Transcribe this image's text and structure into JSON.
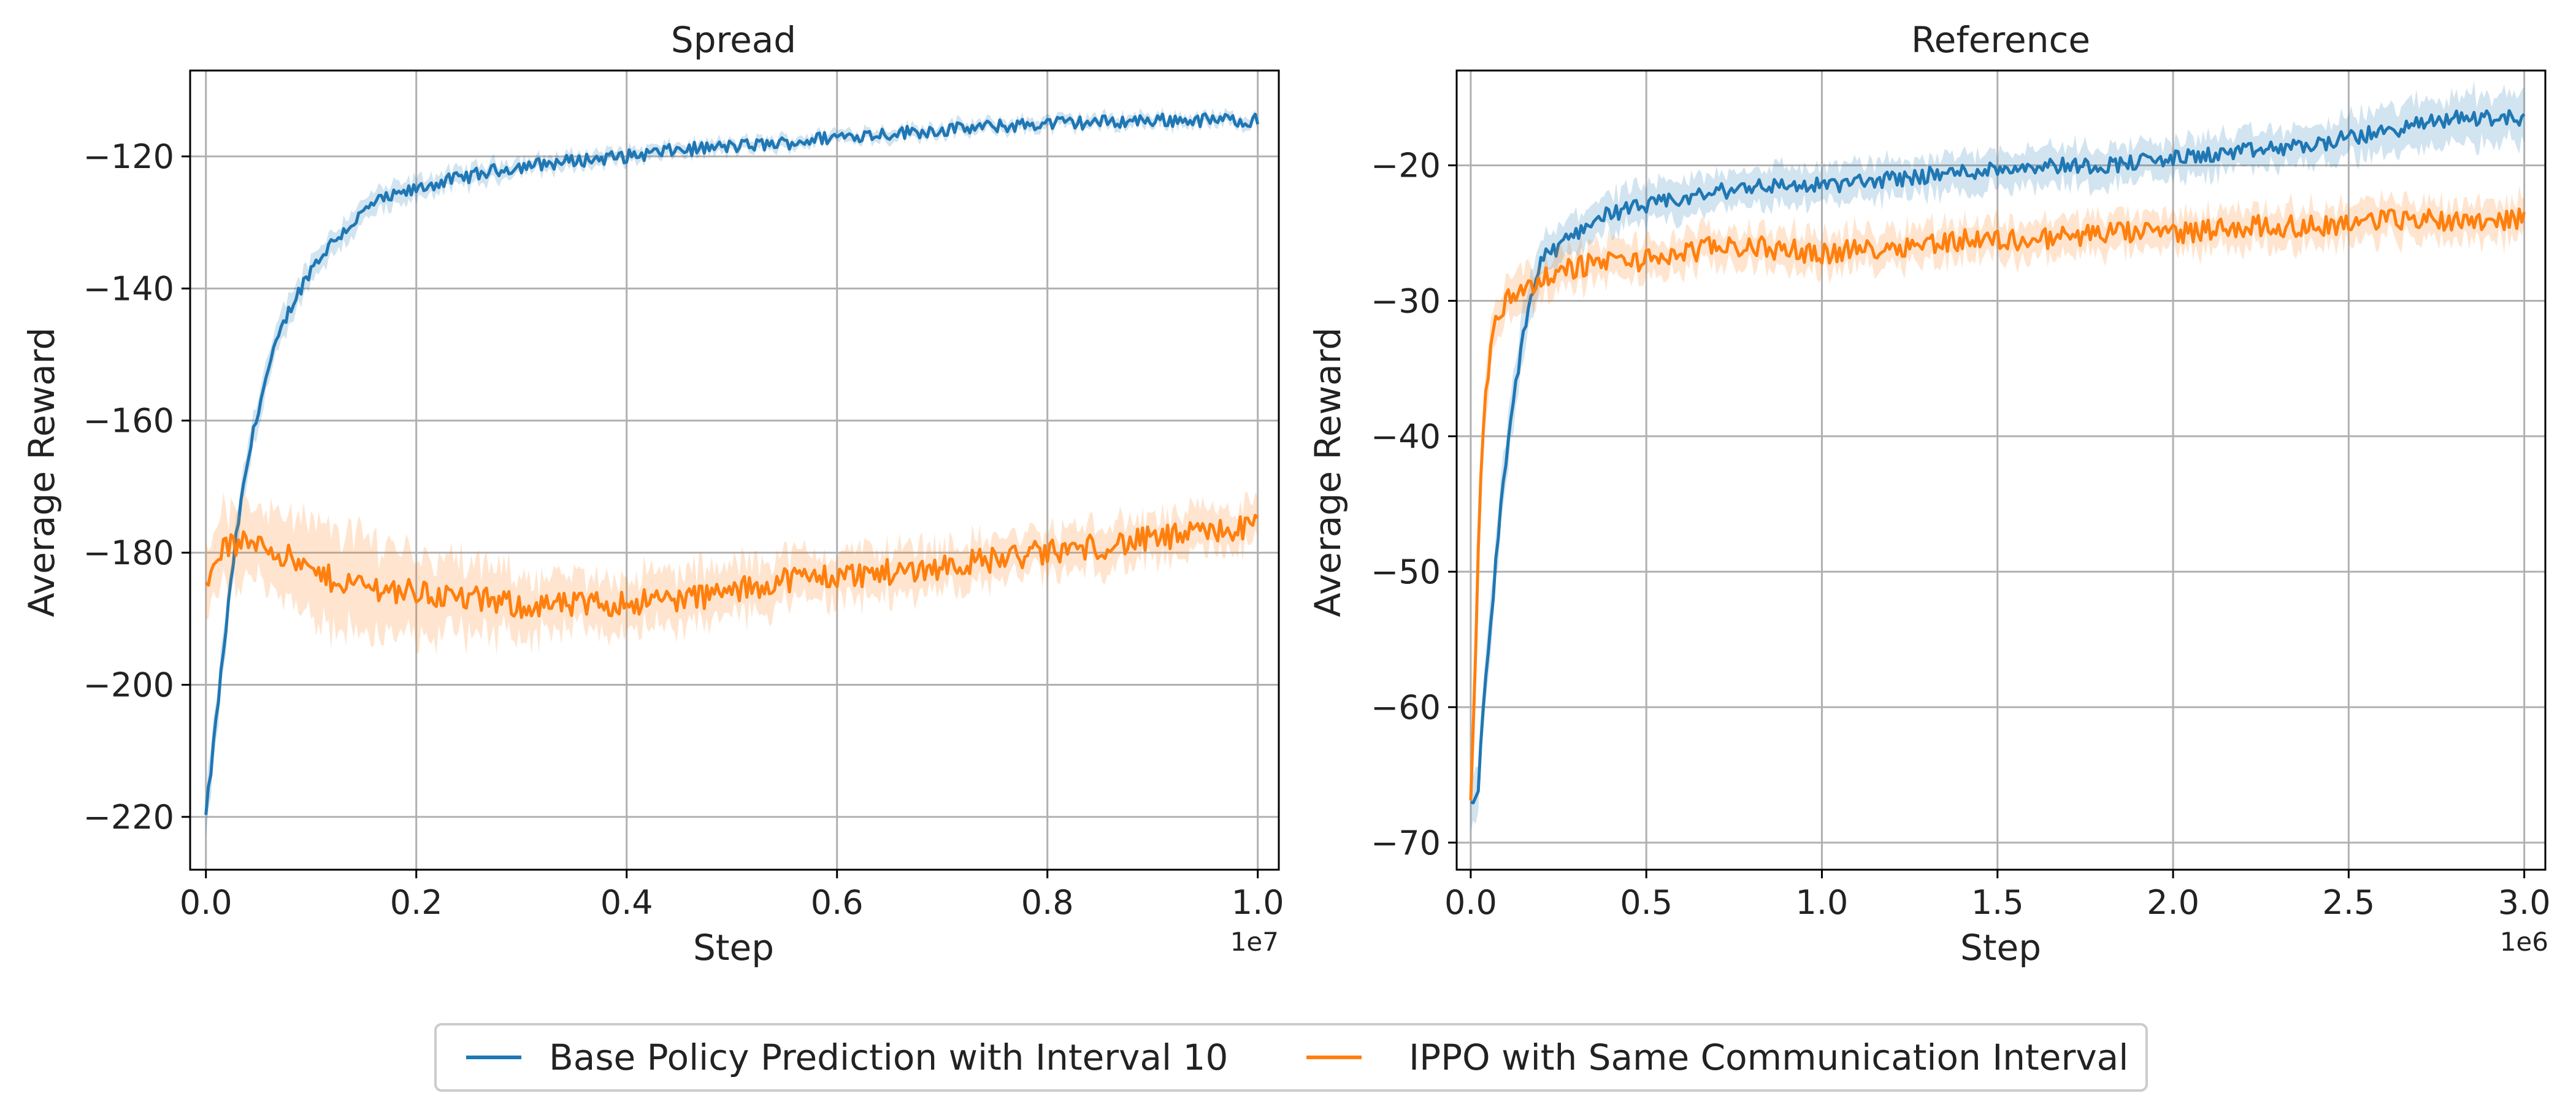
{
  "legend": {
    "entries": [
      {
        "label": "Base Policy Prediction with Interval 10",
        "color": "#1f77b4"
      },
      {
        "label": "IPPO with Same Communication Interval",
        "color": "#ff7f0e"
      }
    ]
  },
  "chart_data": [
    {
      "type": "line",
      "title": "Spread",
      "xlabel": "Step",
      "ylabel": "Average Reward",
      "x_multiplier": "1e7",
      "xlim": [
        -0.015,
        1.02
      ],
      "ylim": [
        -228,
        -107
      ],
      "xticks": [
        0.0,
        0.2,
        0.4,
        0.6,
        0.8,
        1.0
      ],
      "xtick_labels": [
        "0.0",
        "0.2",
        "0.4",
        "0.6",
        "0.8",
        "1.0"
      ],
      "yticks": [
        -220,
        -200,
        -180,
        -160,
        -140,
        -120
      ],
      "ytick_labels": [
        "−220",
        "−200",
        "−180",
        "−160",
        "−140",
        "−120"
      ],
      "grid": true,
      "shaded_band": "variance across runs",
      "series": [
        {
          "name": "Base Policy Prediction with Interval 10",
          "color": "#1f77b4",
          "x": [
            0.0,
            0.01,
            0.02,
            0.03,
            0.04,
            0.05,
            0.06,
            0.07,
            0.08,
            0.09,
            0.1,
            0.12,
            0.14,
            0.16,
            0.18,
            0.2,
            0.22,
            0.25,
            0.28,
            0.3,
            0.33,
            0.36,
            0.4,
            0.45,
            0.5,
            0.55,
            0.6,
            0.65,
            0.7,
            0.75,
            0.8,
            0.85,
            0.9,
            0.95,
            1.0
          ],
          "y": [
            -220,
            -205,
            -190,
            -176,
            -166,
            -158,
            -152,
            -147,
            -143,
            -140,
            -137,
            -133,
            -130,
            -127,
            -126,
            -125,
            -124,
            -123,
            -122,
            -121.5,
            -121,
            -120.5,
            -120,
            -119,
            -118.5,
            -118,
            -117,
            -116.5,
            -116,
            -115.5,
            -115,
            -114.8,
            -114.5,
            -114.5,
            -114.5
          ],
          "band": [
            3.5,
            3.5,
            3,
            3,
            3,
            3,
            2.5,
            2.5,
            2.5,
            2,
            2,
            2,
            2,
            2,
            1.8,
            1.8,
            1.5,
            1.5,
            1.5,
            1.2,
            1.2,
            1.2,
            1.2,
            1,
            1,
            1,
            1,
            1,
            1,
            1,
            1,
            1,
            1,
            1,
            1
          ],
          "noise": 1.0
        },
        {
          "name": "IPPO with Same Communication Interval",
          "color": "#ff7f0e",
          "x": [
            0.0,
            0.01,
            0.02,
            0.03,
            0.05,
            0.08,
            0.1,
            0.12,
            0.15,
            0.2,
            0.25,
            0.3,
            0.35,
            0.4,
            0.45,
            0.5,
            0.55,
            0.6,
            0.65,
            0.7,
            0.75,
            0.8,
            0.85,
            0.9,
            0.95,
            1.0
          ],
          "y": [
            -186,
            -180,
            -179,
            -179,
            -178,
            -181,
            -183,
            -184,
            -185,
            -186,
            -187,
            -188,
            -188,
            -187.5,
            -187,
            -186,
            -184,
            -183.5,
            -183,
            -182,
            -181,
            -180,
            -179,
            -178,
            -177,
            -176
          ],
          "band": [
            6,
            6,
            6,
            6,
            6,
            7,
            8,
            8,
            8,
            7,
            6,
            5,
            4.5,
            4.5,
            4.5,
            4.5,
            4,
            4,
            4,
            3.5,
            3.5,
            3.5,
            3.5,
            3.5,
            3.5,
            3.5
          ],
          "noise": 2.0
        }
      ]
    },
    {
      "type": "line",
      "title": "Reference",
      "xlabel": "Step",
      "ylabel": "Average Reward",
      "x_multiplier": "1e6",
      "xlim": [
        -0.04,
        3.06
      ],
      "ylim": [
        -72,
        -13
      ],
      "xticks": [
        0.0,
        0.5,
        1.0,
        1.5,
        2.0,
        2.5,
        3.0
      ],
      "xtick_labels": [
        "0.0",
        "0.5",
        "1.0",
        "1.5",
        "2.0",
        "2.5",
        "3.0"
      ],
      "yticks": [
        -70,
        -60,
        -50,
        -40,
        -30,
        -20
      ],
      "ytick_labels": [
        "−70",
        "−60",
        "−50",
        "−40",
        "−30",
        "−20"
      ],
      "grid": true,
      "shaded_band": "variance across runs",
      "series": [
        {
          "name": "Base Policy Prediction with Interval 10",
          "color": "#1f77b4",
          "x": [
            0.0,
            0.02,
            0.04,
            0.06,
            0.08,
            0.1,
            0.12,
            0.14,
            0.16,
            0.18,
            0.2,
            0.25,
            0.3,
            0.35,
            0.4,
            0.5,
            0.6,
            0.7,
            0.8,
            0.9,
            1.0,
            1.2,
            1.4,
            1.6,
            1.8,
            2.0,
            2.2,
            2.4,
            2.6,
            2.8,
            3.0
          ],
          "y": [
            -67,
            -67,
            -58,
            -53,
            -47,
            -42,
            -38,
            -34,
            -31,
            -29,
            -27,
            -26,
            -25,
            -24,
            -23.5,
            -23,
            -22.5,
            -22,
            -21.5,
            -21.5,
            -21.5,
            -21,
            -20.5,
            -20,
            -20,
            -19.5,
            -19,
            -18.5,
            -17.5,
            -16.5,
            -16.5
          ],
          "band": [
            2,
            2,
            2,
            2,
            2,
            2,
            2,
            2,
            2,
            2,
            1.5,
            1.5,
            1.5,
            1.5,
            1.5,
            1.5,
            1.5,
            1.5,
            1.5,
            1.5,
            1.5,
            1.5,
            1.5,
            1.5,
            1.5,
            1.5,
            1.5,
            1.5,
            1.8,
            2,
            2
          ],
          "noise": 0.6
        },
        {
          "name": "IPPO with Same Communication Interval",
          "color": "#ff7f0e",
          "x": [
            0.0,
            0.01,
            0.02,
            0.03,
            0.04,
            0.05,
            0.06,
            0.08,
            0.1,
            0.12,
            0.15,
            0.2,
            0.25,
            0.3,
            0.4,
            0.5,
            0.6,
            0.7,
            0.8,
            1.0,
            1.2,
            1.4,
            1.6,
            1.8,
            2.0,
            2.2,
            2.4,
            2.6,
            2.8,
            3.0
          ],
          "y": [
            -67,
            -60,
            -50,
            -42,
            -37,
            -35,
            -33,
            -31,
            -30,
            -29.5,
            -29,
            -28.5,
            -28,
            -27.5,
            -27,
            -27,
            -26.5,
            -26,
            -26,
            -26.5,
            -26,
            -25.5,
            -25.5,
            -25,
            -25,
            -24.5,
            -24.5,
            -24,
            -24,
            -24
          ],
          "band": [
            2,
            2,
            2,
            2,
            2,
            2,
            2,
            1.8,
            1.8,
            1.8,
            1.8,
            1.5,
            1.5,
            1.5,
            1.5,
            1.5,
            1.5,
            1.5,
            1.5,
            1.5,
            1.5,
            1.5,
            1.5,
            1.5,
            1.5,
            1.5,
            1.5,
            1.5,
            1.5,
            1.5
          ],
          "noise": 0.8
        }
      ]
    }
  ]
}
